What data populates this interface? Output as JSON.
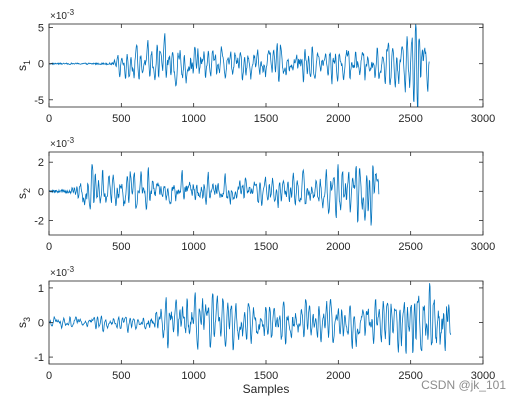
{
  "chart_data": [
    {
      "type": "line",
      "ylabel": "s",
      "ylabel_sub": "1",
      "exponent": "×10",
      "exponent_power": "-3",
      "xlim": [
        0,
        3000
      ],
      "ylim": [
        -6,
        5.5
      ],
      "xticks": [
        "0",
        "500",
        "1000",
        "1500",
        "2000",
        "2500",
        "3000"
      ],
      "xtick_values": [
        0,
        500,
        1000,
        1500,
        2000,
        2500,
        3000
      ],
      "yticks": [
        "5",
        "0",
        "-5"
      ],
      "ytick_values": [
        5,
        0,
        -5
      ],
      "grid": false,
      "series": [
        {
          "color": "#0072BD",
          "x_end": 2630,
          "quiet_until": 450,
          "envelope": [
            [
              0,
              0.15
            ],
            [
              440,
              0.2
            ],
            [
              470,
              1.4
            ],
            [
              600,
              2.4
            ],
            [
              850,
              3.8
            ],
            [
              1100,
              2.4
            ],
            [
              1600,
              2.4
            ],
            [
              2000,
              2.6
            ],
            [
              2200,
              2.4
            ],
            [
              2350,
              3.2
            ],
            [
              2480,
              3.8
            ],
            [
              2560,
              5.3
            ],
            [
              2630,
              3.4
            ]
          ],
          "min_value": -6.1,
          "max_value": 5.5
        }
      ]
    },
    {
      "type": "line",
      "ylabel": "s",
      "ylabel_sub": "2",
      "exponent": "×10",
      "exponent_power": "-3",
      "xlim": [
        0,
        3000
      ],
      "ylim": [
        -3,
        2.7
      ],
      "xticks": [
        "0",
        "500",
        "1000",
        "1500",
        "2000",
        "2500",
        "3000"
      ],
      "xtick_values": [
        0,
        500,
        1000,
        1500,
        2000,
        2500,
        3000
      ],
      "yticks": [
        "2",
        "0",
        "-2"
      ],
      "ytick_values": [
        2,
        0,
        -2
      ],
      "grid": false,
      "series": [
        {
          "color": "#0072BD",
          "x_end": 2280,
          "quiet_until": 150,
          "envelope": [
            [
              0,
              0.1
            ],
            [
              150,
              0.25
            ],
            [
              250,
              1.4
            ],
            [
              450,
              1.6
            ],
            [
              750,
              1.2
            ],
            [
              1500,
              1.1
            ],
            [
              1900,
              1.3
            ],
            [
              2100,
              1.8
            ],
            [
              2180,
              2.7
            ],
            [
              2280,
              1.6
            ]
          ],
          "min_value": -3.0,
          "max_value": 2.7
        }
      ]
    },
    {
      "type": "line",
      "ylabel": "s",
      "ylabel_sub": "3",
      "exponent": "×10",
      "exponent_power": "-3",
      "xlim": [
        0,
        3000
      ],
      "ylim": [
        -1.2,
        1.2
      ],
      "xticks": [
        "0",
        "500",
        "1000",
        "1500",
        "2000",
        "2500",
        "3000"
      ],
      "xtick_values": [
        0,
        500,
        1000,
        1500,
        2000,
        2500,
        3000
      ],
      "yticks": [
        "1",
        "0",
        "-1"
      ],
      "ytick_values": [
        1,
        0,
        -1
      ],
      "grid": false,
      "xlabel": "Samples",
      "series": [
        {
          "color": "#0072BD",
          "x_end": 2780,
          "quiet_until": 0,
          "envelope": [
            [
              0,
              0.22
            ],
            [
              650,
              0.18
            ],
            [
              760,
              0.65
            ],
            [
              1000,
              0.75
            ],
            [
              1500,
              0.6
            ],
            [
              2000,
              0.55
            ],
            [
              2400,
              0.65
            ],
            [
              2560,
              0.95
            ],
            [
              2700,
              1.15
            ],
            [
              2780,
              0.7
            ]
          ],
          "min_value": -1.2,
          "max_value": 1.15
        }
      ]
    }
  ],
  "watermark": "CSDN @jk_101"
}
